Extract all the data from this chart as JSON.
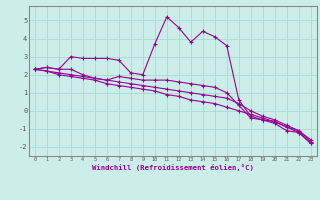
{
  "xlabel": "Windchill (Refroidissement éolien,°C)",
  "bg_color": "#cceee8",
  "grid_color": "#aad8d2",
  "line_color": "#990099",
  "x_hours": [
    0,
    1,
    2,
    3,
    4,
    5,
    6,
    7,
    8,
    9,
    10,
    11,
    12,
    13,
    14,
    15,
    16,
    17,
    18,
    19,
    20,
    21,
    22,
    23
  ],
  "series1": [
    2.3,
    2.4,
    2.3,
    3.0,
    2.9,
    2.9,
    2.9,
    2.8,
    2.1,
    2.0,
    3.7,
    5.2,
    4.6,
    3.8,
    4.4,
    4.1,
    3.6,
    0.6,
    -0.3,
    -0.5,
    -0.7,
    -1.1,
    -1.2,
    -1.8
  ],
  "series2": [
    2.3,
    2.4,
    2.3,
    2.3,
    2.0,
    1.8,
    1.7,
    1.9,
    1.8,
    1.7,
    1.7,
    1.7,
    1.6,
    1.5,
    1.4,
    1.3,
    1.0,
    0.3,
    -0.4,
    -0.5,
    -0.6,
    -0.9,
    -1.1,
    -1.7
  ],
  "series3": [
    2.3,
    2.2,
    2.1,
    2.0,
    1.9,
    1.8,
    1.7,
    1.6,
    1.5,
    1.4,
    1.3,
    1.2,
    1.1,
    1.0,
    0.9,
    0.8,
    0.7,
    0.4,
    0.0,
    -0.3,
    -0.5,
    -0.8,
    -1.1,
    -1.6
  ],
  "series4": [
    2.3,
    2.2,
    2.0,
    1.9,
    1.8,
    1.7,
    1.5,
    1.4,
    1.3,
    1.2,
    1.1,
    0.9,
    0.8,
    0.6,
    0.5,
    0.4,
    0.2,
    0.0,
    -0.2,
    -0.4,
    -0.6,
    -0.9,
    -1.2,
    -1.8
  ],
  "ylim": [
    -2.5,
    5.8
  ],
  "yticks": [
    -2,
    -1,
    0,
    1,
    2,
    3,
    4,
    5
  ],
  "xticks": [
    0,
    1,
    2,
    3,
    4,
    5,
    6,
    7,
    8,
    9,
    10,
    11,
    12,
    13,
    14,
    15,
    16,
    17,
    18,
    19,
    20,
    21,
    22,
    23
  ],
  "spine_color": "#888888",
  "tick_color": "#555555"
}
